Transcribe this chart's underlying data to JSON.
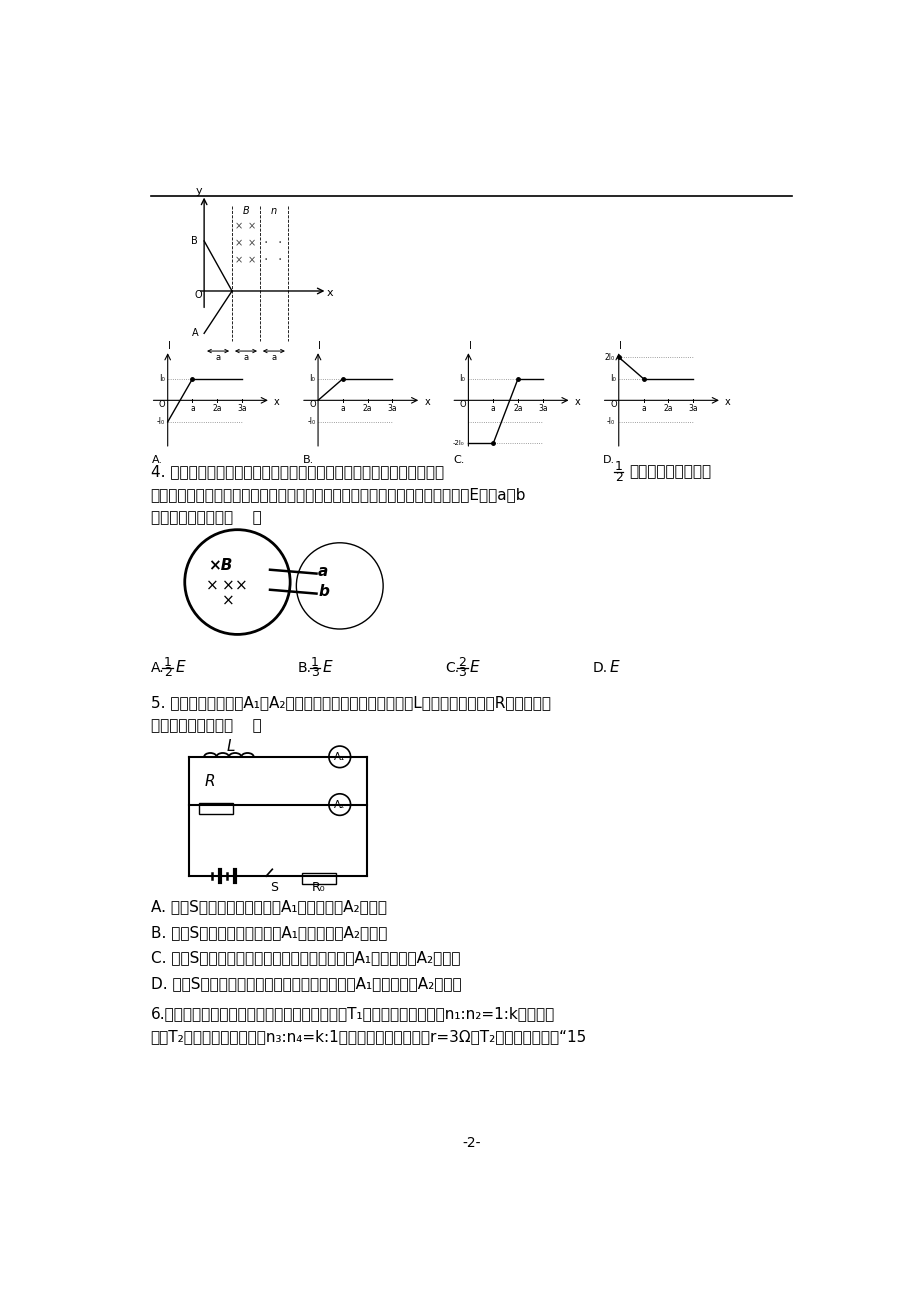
{
  "background_color": "#ffffff",
  "page_number": "-2-",
  "q4_text_line1a": "4. 如图所示，两个互连的金属圆环，糬金属环的电阱是细金属环电阱的",
  "q4_frac_num": "1",
  "q4_frac_den": "2",
  "q4_text_line1b": "磁场垂直穿过糬金",
  "q4_text_line2": "属环所在区域，当磁感应强度随时间均匀变化时，在糬环内产生的感应电动势为E，则a、b",
  "q4_text_line3": "两点间的电势差为（    ）",
  "q5_text_line1": "5. 如图所示电路中，A₁、A₂是两只相同的电流表，电感线圈L的直流电阱与电阱R阱値相等，",
  "q5_text_line2": "下面判断正确的是（    ）",
  "q5_A": "A. 开关S接通的瞬间，电流表A₁的读数大于A₂的读数",
  "q5_B": "B. 开关S接通的瞬间，电流表A₁的读数小于A₂的读数",
  "q5_C": "C. 开关S接通电路稳定后再断开的瞬间，电流表A₁的读数大于A₂的读数",
  "q5_D": "D. 开关S接通电路稳定后再断开的瞬间，电流表A₁的读数小于A₂的读数",
  "q6_text_line1": "6.图为模拟远距离交流输电的电路，升压变压器T₁的原、副线圈匹数比n₁:n₂=1:k，降压变",
  "q6_text_line2": "压器T₂的原、副线圈匹数比n₃:n₄=k:1，模拟输电导线的电阱r=3Ω，T₂的负载是规格为“15"
}
